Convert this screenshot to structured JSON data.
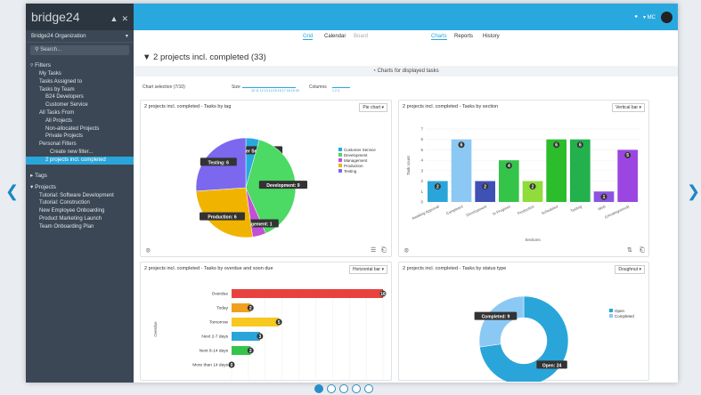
{
  "app": {
    "logo": "bridge24",
    "pin_icon": "pin-icon",
    "close_icon": "close-icon"
  },
  "sidebar": {
    "org": "Bridge24 Organization",
    "search": "Search...",
    "filters": "Filters",
    "items": [
      "My Tasks",
      "Tasks Assigned to",
      "Tasks by Team",
      "B24 Developers",
      "Customer Service",
      "All Tasks From",
      "All Projects",
      "Non-allocated Projects",
      "Private Projects",
      "Personal Filters",
      "Create new filter...",
      "2 projects incl. completed"
    ],
    "tags": "Tags",
    "projects": "Projects",
    "project_list": [
      "Tutorial: Software Development",
      "Tutorial: Construction",
      "New Employee Onboarding",
      "Product Marketing Launch",
      "Team Onboarding Plan"
    ]
  },
  "topbar": {
    "user": "MC"
  },
  "tabs": {
    "grid": "Grid",
    "calendar": "Calendar",
    "board": "Board",
    "charts": "Charts",
    "reports": "Reports",
    "history": "History"
  },
  "header": {
    "title": "2 projects incl. completed  (33)",
    "charts_bar": "Charts for displayed tasks"
  },
  "controls": {
    "chart_selection": "Chart selection (7/10)",
    "size": "Size",
    "size_ticks": "10 11 12 13 14 15 16 17 18 19 20",
    "columns": "Columns",
    "column_ticks": "1 2 3"
  },
  "cards": [
    {
      "title": "2 projects incl. completed - Tasks by tag",
      "select": "Pie chart"
    },
    {
      "title": "2 projects incl. completed - Tasks by section",
      "select": "Vertical bar"
    },
    {
      "title": "2 projects incl. completed - Tasks by overdue and soon due",
      "select": "Horizontal bar"
    },
    {
      "title": "2 projects incl. completed - Tasks by status type",
      "select": "Doughnut"
    }
  ],
  "chart_data": [
    {
      "type": "pie",
      "slices": [
        {
          "name": "Customer Service",
          "value": 1,
          "color": "#29a8df"
        },
        {
          "name": "Development",
          "value": 9,
          "color": "#4cd964"
        },
        {
          "name": "Management",
          "value": 1,
          "color": "#c34fd6"
        },
        {
          "name": "Production",
          "value": 6,
          "color": "#f0b400"
        },
        {
          "name": "Testing",
          "value": 6,
          "color": "#7b68ee"
        }
      ]
    },
    {
      "type": "bar",
      "ylabel": "Task count",
      "xlabel": "Sections",
      "ylim": [
        0,
        7
      ],
      "categories": [
        "Awaiting Approval",
        "Completed",
        "Development",
        "In Progress",
        "Production",
        "Scheduled",
        "Testing",
        "Web",
        "(Uncategorized)"
      ],
      "values": [
        2,
        6,
        2,
        4,
        2,
        6,
        6,
        1,
        5
      ],
      "colors": [
        "#2aa5d9",
        "#8cc8f4",
        "#3f51b5",
        "#35c44a",
        "#8fdc3a",
        "#2bbd2b",
        "#22b14c",
        "#8a55e0",
        "#9b46e0"
      ]
    },
    {
      "type": "bar",
      "orientation": "horizontal",
      "ylabel": "Overdue",
      "categories": [
        "Overdue",
        "Today",
        "Tomorrow",
        "Next 2-7 days",
        "Next 8-14 days",
        "More than 14 days"
      ],
      "values": [
        16,
        2,
        5,
        3,
        2,
        0
      ],
      "colors": [
        "#e8423f",
        "#f0a020",
        "#f7c81f",
        "#2aa5d9",
        "#35c44a",
        "#c0c0c0"
      ]
    },
    {
      "type": "pie",
      "donut": true,
      "slices": [
        {
          "name": "Open",
          "value": 24,
          "color": "#2aa5d9"
        },
        {
          "name": "Completed",
          "value": 9,
          "color": "#8cc8f4"
        }
      ]
    }
  ]
}
